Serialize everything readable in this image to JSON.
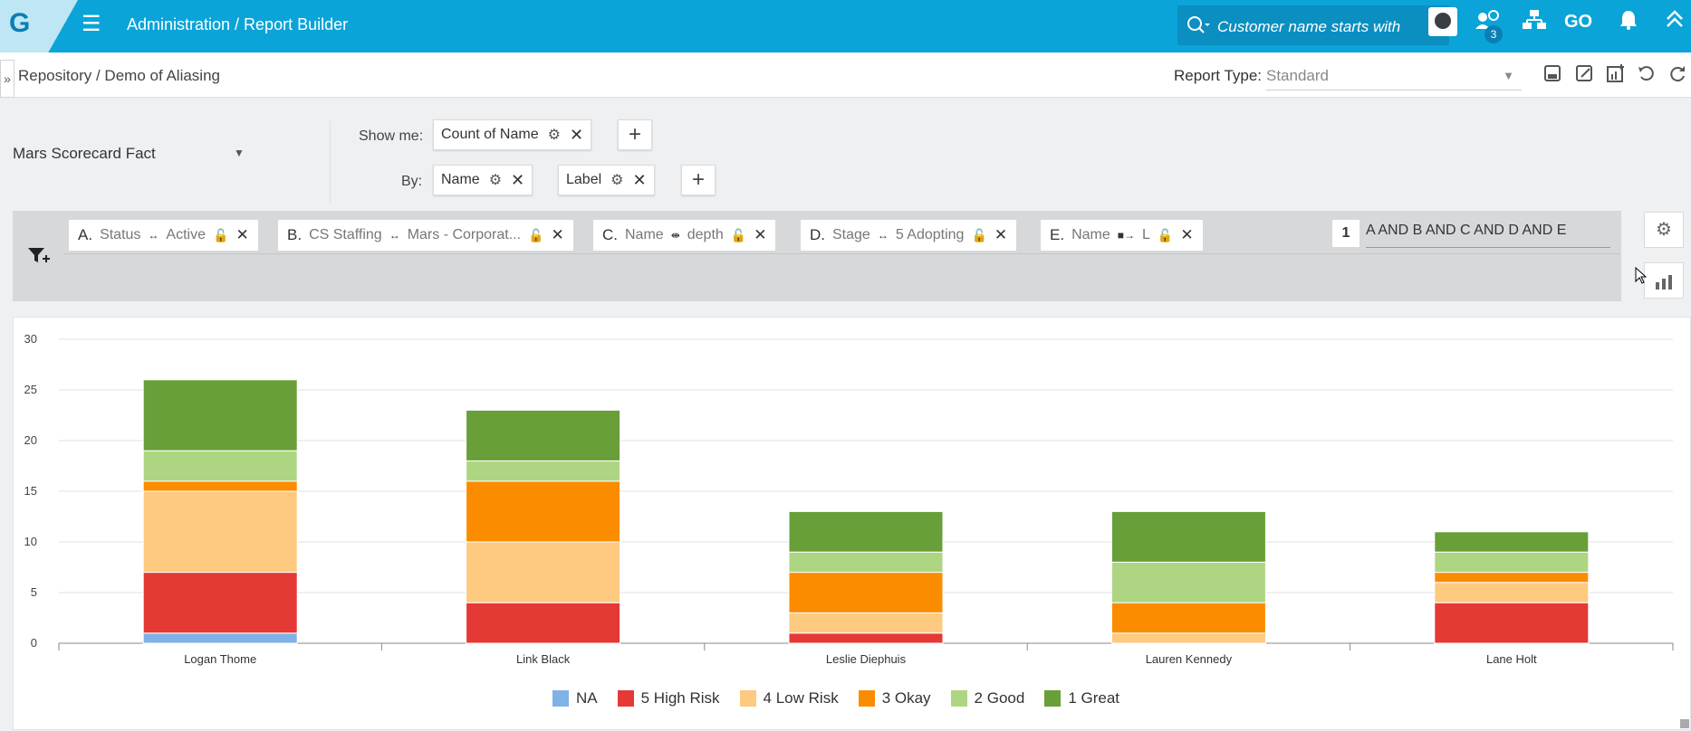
{
  "topbar": {
    "logo": "G",
    "breadcrumb": "Administration  /  Report Builder",
    "search_placeholder": "Customer name starts with",
    "notification_count": "3",
    "go_label": "GO"
  },
  "subbar": {
    "breadcrumb": "Repository  /  Demo of Aliasing",
    "report_type_label": "Report Type:",
    "report_type_value": "Standard"
  },
  "builder": {
    "source": "Mars Scorecard Fact",
    "show_me_label": "Show me:",
    "show_me_chip": "Count of Name",
    "by_label": "By:",
    "by_chips": [
      "Name",
      "Label"
    ],
    "plus": "+"
  },
  "filters": {
    "chips": [
      {
        "key": "A.",
        "field": "Status",
        "op": "↔",
        "value": "Active"
      },
      {
        "key": "B.",
        "field": "CS Staffing",
        "op": "↔",
        "value": "Mars - Corporat..."
      },
      {
        "key": "C.",
        "field": "Name",
        "op": "⇼",
        "value": "depth"
      },
      {
        "key": "D.",
        "field": "Stage",
        "op": "↔",
        "value": "5 Adopting"
      },
      {
        "key": "E.",
        "field": "Name",
        "op": "■→",
        "value": "L"
      }
    ],
    "logic_number": "1",
    "logic_expression": "A AND B AND C AND D AND E"
  },
  "chart_data": {
    "type": "bar",
    "stacked": true,
    "categories": [
      "Logan Thome",
      "Link Black",
      "Leslie Diephuis",
      "Lauren Kennedy",
      "Lane Holt"
    ],
    "ylim": [
      0,
      30
    ],
    "yticks": [
      0,
      5,
      10,
      15,
      20,
      25,
      30
    ],
    "series": [
      {
        "name": "NA",
        "color": "#7fb2e6",
        "values": [
          1,
          0,
          0,
          0,
          0
        ]
      },
      {
        "name": "5 High Risk",
        "color": "#e53935",
        "values": [
          6,
          4,
          1,
          0,
          4
        ]
      },
      {
        "name": "4 Low Risk",
        "color": "#fdca80",
        "values": [
          8,
          6,
          2,
          1,
          2
        ]
      },
      {
        "name": "3 Okay",
        "color": "#fb8c00",
        "values": [
          1,
          6,
          4,
          3,
          1
        ]
      },
      {
        "name": "2 Good",
        "color": "#aed581",
        "values": [
          3,
          2,
          2,
          4,
          2
        ]
      },
      {
        "name": "1 Great",
        "color": "#689f38",
        "values": [
          7,
          5,
          4,
          5,
          2
        ]
      }
    ],
    "grid": true,
    "legend_position": "bottom"
  }
}
